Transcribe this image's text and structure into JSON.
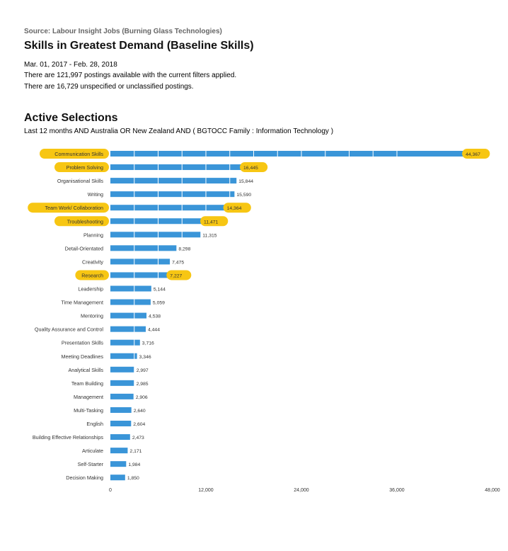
{
  "header": {
    "source": "Source: Labour Insight Jobs (Burning Glass Technologies)",
    "title": "Skills in Greatest Demand (Baseline Skills)",
    "date_range": "Mar.  01, 2017  - Feb.  28, 2018",
    "postings_line": "There are 121,997 postings available with the current filters applied.",
    "unspecified_line": "There are 16,729 unspecified or unclassified postings."
  },
  "selections": {
    "title": "Active Selections",
    "description": "Last 12 months AND Australia OR New Zealand AND ( BGTOCC Family : Information Technology )"
  },
  "colors": {
    "bar": "#3a95d8",
    "highlight": "#f7c613",
    "text": "#333333"
  },
  "chart_data": {
    "type": "bar",
    "orientation": "horizontal",
    "title": "",
    "xlabel": "",
    "ylabel": "",
    "xlim": [
      0,
      48000
    ],
    "x_ticks": [
      "0",
      "12,000",
      "24,000",
      "36,000",
      "48,000"
    ],
    "grid": "vertical gridlines drawn over bars",
    "categories": [
      "Communication Skills",
      "Problem Solving",
      "Organisational Skills",
      "Writing",
      "Team Work/ Collaboration",
      "Troubleshooting",
      "Planning",
      "Detail-Orientated",
      "Creativity",
      "Research",
      "Leadership",
      "Time Management",
      "Mentoring",
      "Quality Assurance and Control",
      "Presentation Skills",
      "Meeting Deadlines",
      "Analytical Skills",
      "Team Building",
      "Management",
      "Multi-Tasking",
      "English",
      "Building Effective Relationships",
      "Articulate",
      "Self-Starter",
      "Decision Making"
    ],
    "values": [
      44367,
      16445,
      15844,
      15590,
      14364,
      11471,
      11315,
      8298,
      7475,
      7227,
      5144,
      5059,
      4538,
      4444,
      3716,
      3346,
      2997,
      2985,
      2906,
      2640,
      2604,
      2473,
      2171,
      1984,
      1850
    ],
    "value_labels": [
      "44,367",
      "16,445",
      "15,844",
      "15,590",
      "14,364",
      "11,471",
      "11,315",
      "8,298",
      "7,475",
      "7,227",
      "5,144",
      "5,059",
      "4,538",
      "4,444",
      "3,716",
      "3,346",
      "2,997",
      "2,985",
      "2,906",
      "2,640",
      "2,604",
      "2,473",
      "2,171",
      "1,984",
      "1,850"
    ],
    "highlighted": [
      "Communication Skills",
      "Problem Solving",
      "Team Work/ Collaboration",
      "Troubleshooting",
      "Research"
    ]
  }
}
